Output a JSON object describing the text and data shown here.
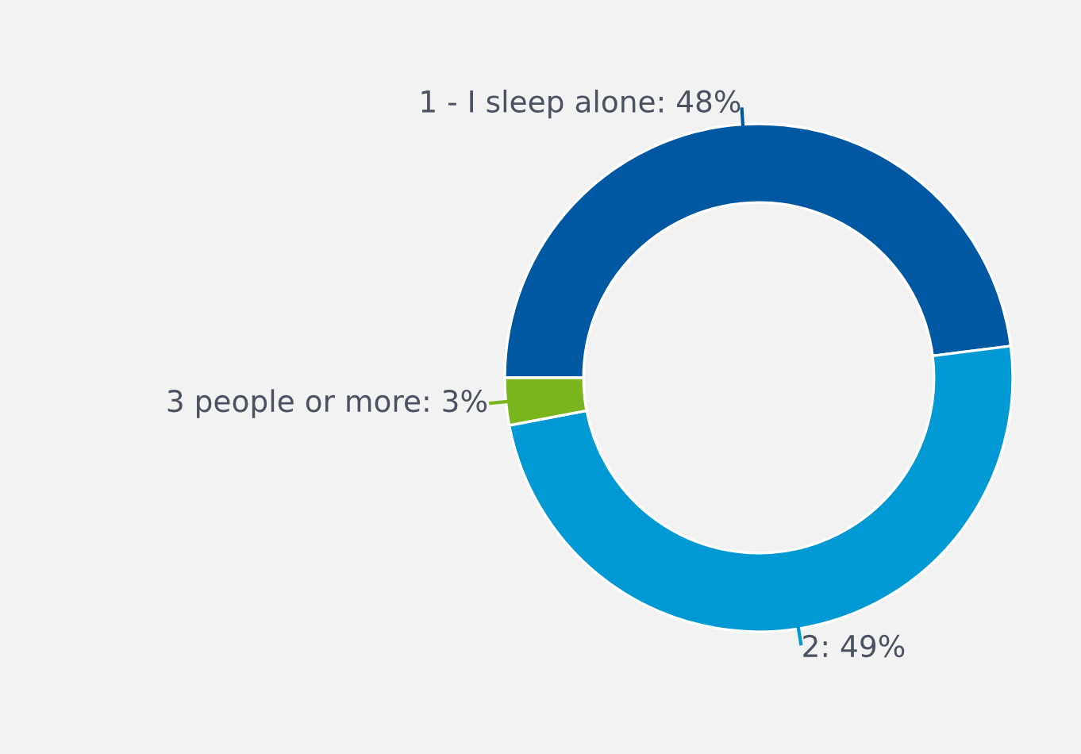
{
  "chart_data": {
    "type": "donut",
    "categories": [
      "1 - I sleep alone",
      "2",
      "3 people or more"
    ],
    "values": [
      48,
      49,
      3
    ],
    "value_labels": [
      "48%",
      "49%",
      "3%"
    ],
    "colors": [
      "#0058a3",
      "#0099d4",
      "#7ab51d"
    ]
  }
}
